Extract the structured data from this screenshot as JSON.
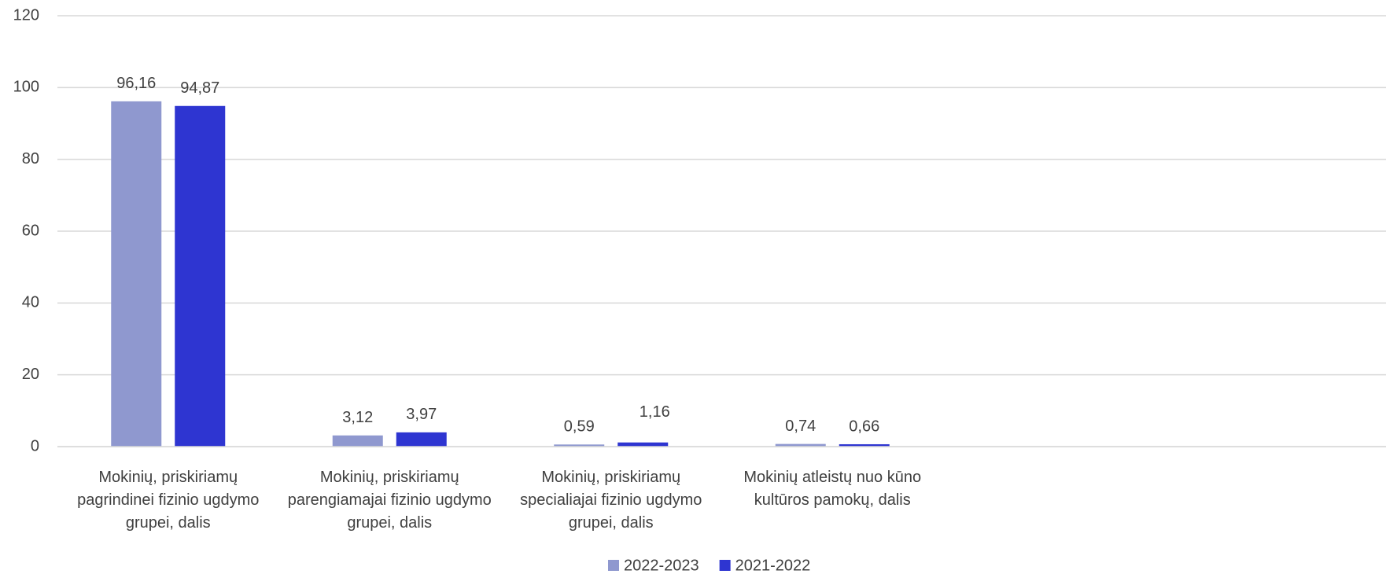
{
  "chart_data": {
    "type": "bar",
    "categories": [
      "Mokinių, priskiriamų pagrindinei fizinio ugdymo grupei, dalis",
      "Mokinių, priskiriamų parengiamajai fizinio ugdymo grupei, dalis",
      "Mokinių, priskiriamų specialiajai fizinio ugdymo grupei, dalis",
      "Mokinių atleistų nuo kūno kultūros pamokų, dalis",
      null,
      null
    ],
    "series": [
      {
        "name": "2022-2023",
        "color": "#8f98cf",
        "values": [
          96.16,
          3.12,
          0.59,
          0.74,
          null,
          null
        ],
        "value_labels": [
          "96,16",
          "3,12",
          "0,59",
          "0,74",
          null,
          null
        ]
      },
      {
        "name": "2021-2022",
        "color": "#2e35d1",
        "values": [
          94.87,
          3.97,
          1.16,
          0.66,
          null,
          null
        ],
        "value_labels": [
          "94,87",
          "3,97",
          "1,16",
          "0,66",
          null,
          null
        ]
      }
    ],
    "ylim": [
      0,
      120
    ],
    "yticks": [
      0,
      20,
      40,
      60,
      80,
      100,
      120
    ],
    "grid": true,
    "legend": "bottom"
  }
}
